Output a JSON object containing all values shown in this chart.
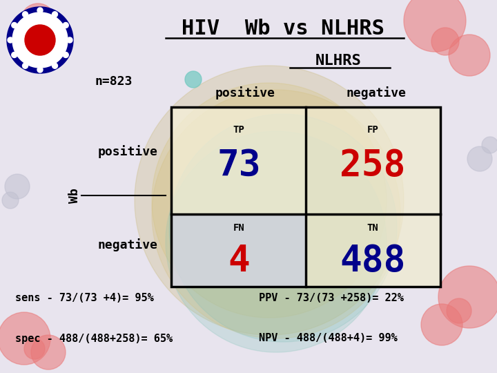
{
  "title": "HIV  Wb vs NLHRS",
  "nlhrs_label": "NLHRS",
  "wb_label": "Wb",
  "n_label": "n=823",
  "col_positive": "positive",
  "col_negative": "negative",
  "row_positive": "positive",
  "row_negative": "negative",
  "tp_label": "TP",
  "tp_value": "73",
  "tp_color": "#00008B",
  "fp_label": "FP",
  "fp_value": "258",
  "fp_color": "#CC0000",
  "fn_label": "FN",
  "fn_value": "4",
  "fn_color": "#CC0000",
  "tn_label": "TN",
  "tn_value": "488",
  "tn_color": "#00008B",
  "sens_text": "sens - 73/(73 +4)= 95%",
  "spec_text": "spec - 488/(488+258)= 65%",
  "ppv_text": "PPV - 73/(73 +258)= 22%",
  "npv_text": "NPV - 488/(488+4)= 99%",
  "bg_color": "#E8E4EE",
  "text_color": "#000000",
  "title_color": "#000000",
  "cell_colors": [
    "#F5F0D8",
    "#F0EBD0",
    "#D8D8E8",
    "#F0EBD0"
  ],
  "grid_lw": 2.5,
  "logo_ring_color": "#00008B",
  "logo_leaf_color": "#CC0000"
}
